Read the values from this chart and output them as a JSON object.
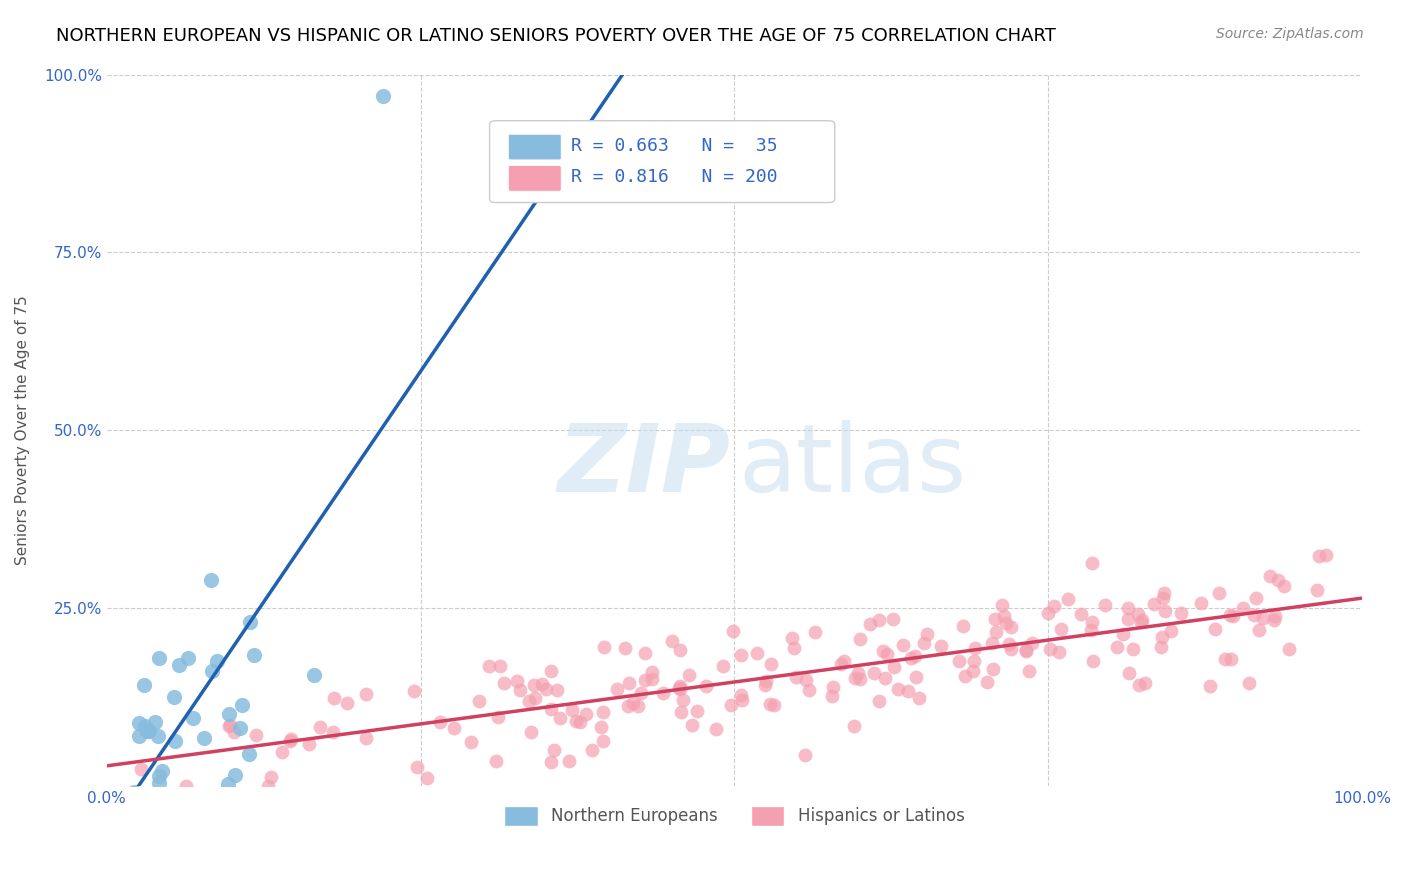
{
  "title": "NORTHERN EUROPEAN VS HISPANIC OR LATINO SENIORS POVERTY OVER THE AGE OF 75 CORRELATION CHART",
  "source": "Source: ZipAtlas.com",
  "ylabel": "Seniors Poverty Over the Age of 75",
  "blue_R": 0.663,
  "blue_N": 35,
  "pink_R": 0.816,
  "pink_N": 200,
  "blue_color": "#87BCDE",
  "pink_color": "#F4A0B0",
  "blue_line_color": "#2060B0",
  "pink_line_color": "#D04060",
  "legend_label_blue": "Northern Europeans",
  "legend_label_pink": "Hispanics or Latinos",
  "xlim": [
    0,
    1
  ],
  "ylim": [
    0,
    1
  ],
  "xticks": [
    0,
    0.25,
    0.5,
    0.75,
    1.0
  ],
  "yticks": [
    0,
    0.25,
    0.5,
    0.75,
    1.0
  ],
  "blue_seed": 42,
  "pink_seed": 7
}
